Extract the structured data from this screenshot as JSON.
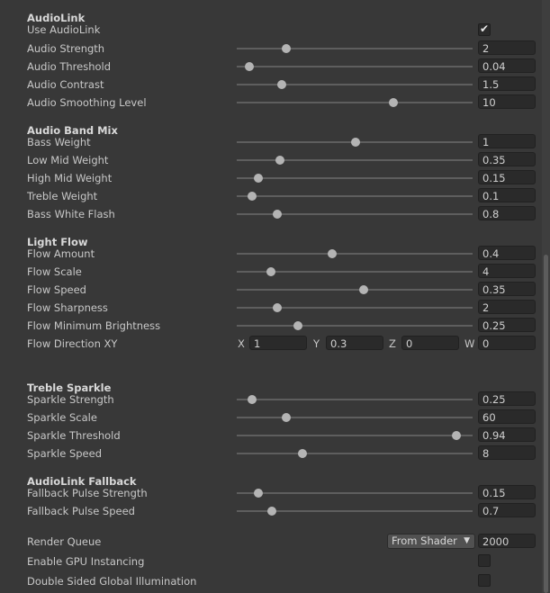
{
  "audiolink": {
    "header": "AudioLink",
    "use_label": "Use AudioLink",
    "use_checked": true,
    "sliders": [
      {
        "label": "Audio Strength",
        "value": "2",
        "pos": 0.21
      },
      {
        "label": "Audio Threshold",
        "value": "0.04",
        "pos": 0.055
      },
      {
        "label": "Audio Contrast",
        "value": "1.5",
        "pos": 0.19
      },
      {
        "label": "Audio Smoothing Level",
        "value": "10",
        "pos": 0.665
      }
    ]
  },
  "band_mix": {
    "header": "Audio Band Mix",
    "sliders": [
      {
        "label": "Bass Weight",
        "value": "1",
        "pos": 0.505
      },
      {
        "label": "Low Mid Weight",
        "value": "0.35",
        "pos": 0.185
      },
      {
        "label": "High Mid Weight",
        "value": "0.15",
        "pos": 0.09
      },
      {
        "label": "Treble Weight",
        "value": "0.1",
        "pos": 0.065
      },
      {
        "label": "Bass White Flash",
        "value": "0.8",
        "pos": 0.17
      }
    ]
  },
  "light_flow": {
    "header": "Light Flow",
    "sliders": [
      {
        "label": "Flow Amount",
        "value": "0.4",
        "pos": 0.405
      },
      {
        "label": "Flow Scale",
        "value": "4",
        "pos": 0.145
      },
      {
        "label": "Flow Speed",
        "value": "0.35",
        "pos": 0.537
      },
      {
        "label": "Flow Sharpness",
        "value": "2",
        "pos": 0.17
      },
      {
        "label": "Flow Minimum Brightness",
        "value": "0.25",
        "pos": 0.26
      }
    ],
    "direction": {
      "label": "Flow Direction XY",
      "x_label": "X",
      "x": "1",
      "y_label": "Y",
      "y": "0.3",
      "z_label": "Z",
      "z": "0",
      "w_label": "W",
      "w": "0"
    }
  },
  "treble_sparkle": {
    "header": "Treble Sparkle",
    "sliders": [
      {
        "label": "Sparkle Strength",
        "value": "0.25",
        "pos": 0.065
      },
      {
        "label": "Sparkle Scale",
        "value": "60",
        "pos": 0.21
      },
      {
        "label": "Sparkle Threshold",
        "value": "0.94",
        "pos": 0.93
      },
      {
        "label": "Sparkle Speed",
        "value": "8",
        "pos": 0.28
      }
    ]
  },
  "fallback": {
    "header": "AudioLink Fallback",
    "sliders": [
      {
        "label": "Fallback Pulse Strength",
        "value": "0.15",
        "pos": 0.09
      },
      {
        "label": "Fallback Pulse Speed",
        "value": "0.7",
        "pos": 0.15
      }
    ]
  },
  "render_queue": {
    "label": "Render Queue",
    "dropdown": "From Shader",
    "value": "2000"
  },
  "gpu_instancing": {
    "label": "Enable GPU Instancing",
    "checked": false
  },
  "double_sided_gi": {
    "label": "Double Sided Global Illumination",
    "checked": false
  }
}
